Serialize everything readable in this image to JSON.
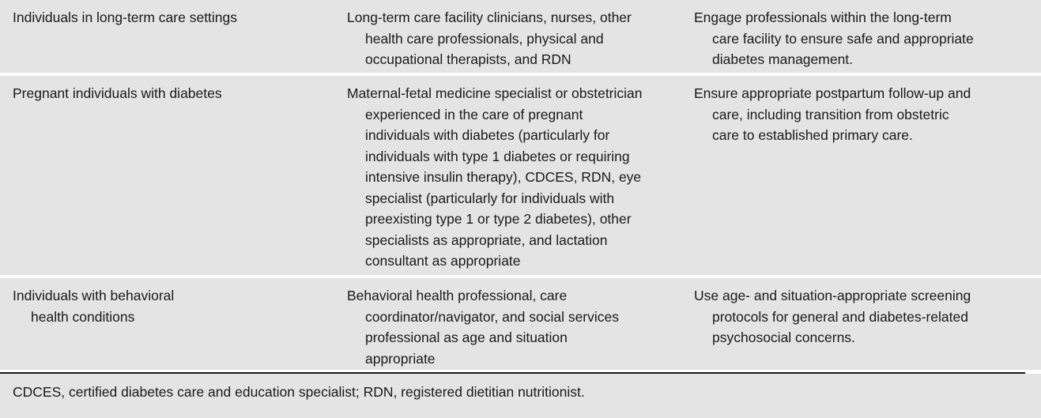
{
  "table": {
    "rows": [
      {
        "population": "Individuals in long-term care settings",
        "team": "Long-term care facility clinicians, nurses, other\nhealth care professionals, physical and\noccupational therapists, and RDN",
        "considerations": "Engage professionals within the long-term\ncare facility to ensure safe and appropriate\ndiabetes management."
      },
      {
        "population": "Pregnant individuals with diabetes",
        "team": "Maternal-fetal medicine specialist or obstetrician\nexperienced in the care of pregnant\nindividuals with diabetes (particularly for\nindividuals with type 1 diabetes or requiring\nintensive insulin therapy), CDCES, RDN, eye\nspecialist (particularly for individuals with\npreexisting type 1 or type 2 diabetes), other\nspecialists as appropriate, and lactation\nconsultant as appropriate",
        "considerations": "Ensure appropriate postpartum follow-up and\ncare, including transition from obstetric\ncare to established primary care."
      },
      {
        "population": "Individuals with behavioral\nhealth conditions",
        "team": "Behavioral health professional, care\ncoordinator/navigator, and social services\nprofessional as age and situation\nappropriate",
        "considerations": "Use age- and situation-appropriate screening\nprotocols for general and diabetes-related\npsychosocial concerns."
      }
    ]
  },
  "footnote": "CDCES, certified diabetes care and education specialist; RDN, registered dietitian nutritionist."
}
